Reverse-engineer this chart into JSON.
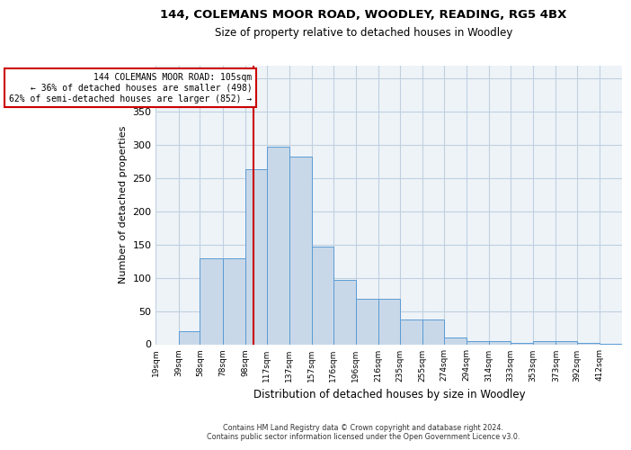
{
  "title1": "144, COLEMANS MOOR ROAD, WOODLEY, READING, RG5 4BX",
  "title2": "Size of property relative to detached houses in Woodley",
  "xlabel": "Distribution of detached houses by size in Woodley",
  "ylabel": "Number of detached properties",
  "bin_labels": [
    "19sqm",
    "39sqm",
    "58sqm",
    "78sqm",
    "98sqm",
    "117sqm",
    "137sqm",
    "157sqm",
    "176sqm",
    "196sqm",
    "216sqm",
    "235sqm",
    "255sqm",
    "274sqm",
    "294sqm",
    "314sqm",
    "333sqm",
    "353sqm",
    "373sqm",
    "392sqm",
    "412sqm"
  ],
  "bin_edges": [
    19,
    39,
    58,
    78,
    98,
    117,
    137,
    157,
    176,
    196,
    216,
    235,
    255,
    274,
    294,
    314,
    333,
    353,
    373,
    392,
    412
  ],
  "bar_heights": [
    0,
    20,
    130,
    130,
    263,
    298,
    283,
    147,
    97,
    68,
    68,
    37,
    37,
    10,
    5,
    5,
    2,
    5,
    5,
    2,
    1
  ],
  "bar_color": "#c8d8e8",
  "bar_edge_color": "#5b9bd5",
  "property_value": 105,
  "annotation_line1": "144 COLEMANS MOOR ROAD: 105sqm",
  "annotation_line2": "← 36% of detached houses are smaller (498)",
  "annotation_line3": "62% of semi-detached houses are larger (852) →",
  "vline_color": "#cc0000",
  "annotation_box_color": "#ffffff",
  "annotation_box_edge": "#cc0000",
  "ylim": [
    0,
    420
  ],
  "yticks": [
    0,
    50,
    100,
    150,
    200,
    250,
    300,
    350,
    400
  ],
  "grid_color": "#c0d0e0",
  "bg_color": "#eef3f8",
  "footer1": "Contains HM Land Registry data © Crown copyright and database right 2024.",
  "footer2": "Contains public sector information licensed under the Open Government Licence v3.0."
}
